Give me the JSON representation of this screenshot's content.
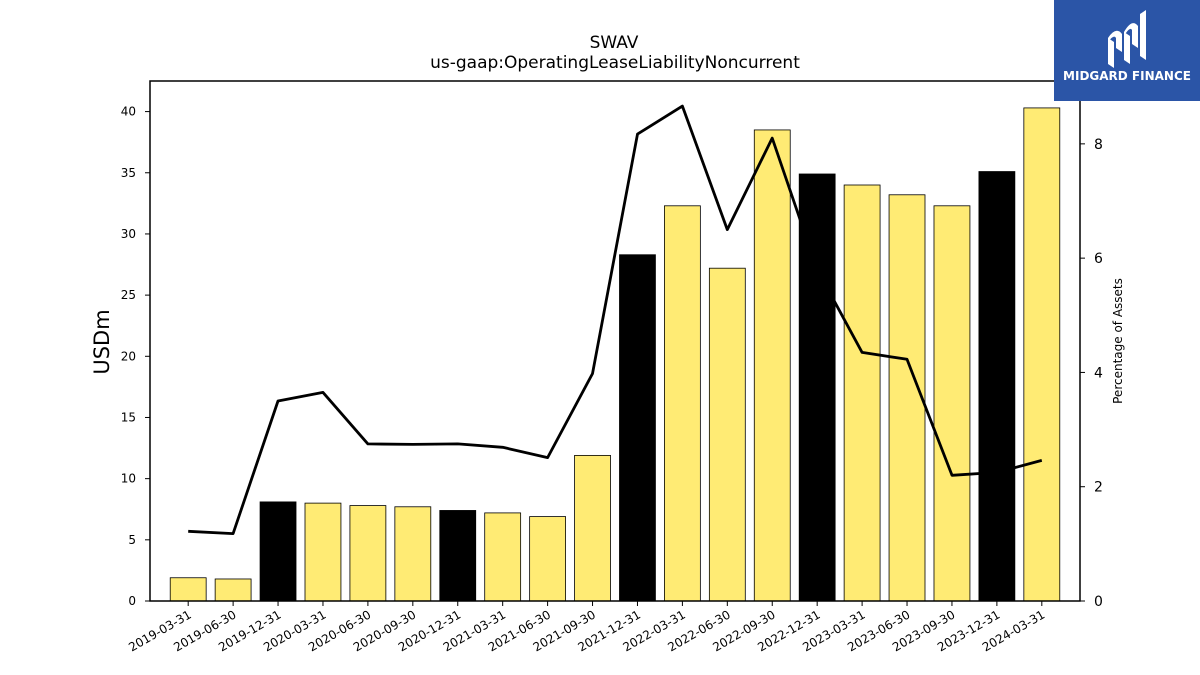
{
  "logo": {
    "text": "MIDGARD FINANCE",
    "icon": "midgard-mark-icon",
    "background": "#2b55a7"
  },
  "chart_data": {
    "type": "bar",
    "title": "SWAV",
    "subtitle": "us-gaap:OperatingLeaseLiabilityNoncurrent",
    "ylabel": "USDm",
    "y2label": "Percentage of Assets",
    "ylim": [
      0,
      42.5
    ],
    "y2lim": [
      0,
      9.1
    ],
    "yticks": [
      0,
      5,
      10,
      15,
      20,
      25,
      30,
      35,
      40
    ],
    "y2ticks": [
      0,
      2,
      4,
      6,
      8
    ],
    "categories": [
      "2019-03-31",
      "2019-06-30",
      "2019-12-31",
      "2020-03-31",
      "2020-06-30",
      "2020-09-30",
      "2020-12-31",
      "2021-03-31",
      "2021-06-30",
      "2021-09-30",
      "2021-12-31",
      "2022-03-31",
      "2022-06-30",
      "2022-09-30",
      "2022-12-31",
      "2023-03-31",
      "2023-06-30",
      "2023-09-30",
      "2023-12-31",
      "2024-03-31"
    ],
    "series": [
      {
        "type": "bar",
        "values": [
          1.9,
          1.8,
          8.1,
          8.0,
          7.8,
          7.7,
          7.4,
          7.2,
          6.9,
          11.9,
          28.3,
          32.3,
          27.2,
          38.5,
          34.9,
          34.0,
          33.2,
          32.3,
          35.1,
          40.3
        ],
        "colors": [
          "#ffeb74",
          "#ffeb74",
          "#000000",
          "#ffeb74",
          "#ffeb74",
          "#ffeb74",
          "#000000",
          "#ffeb74",
          "#ffeb74",
          "#ffeb74",
          "#000000",
          "#ffeb74",
          "#ffeb74",
          "#ffeb74",
          "#000000",
          "#ffeb74",
          "#ffeb74",
          "#ffeb74",
          "#000000",
          "#ffeb74"
        ]
      },
      {
        "type": "line",
        "axis": "right",
        "values": [
          1.22,
          1.18,
          3.5,
          3.65,
          2.75,
          2.74,
          2.75,
          2.69,
          2.51,
          3.98,
          8.17,
          8.66,
          6.5,
          8.1,
          5.8,
          4.35,
          4.23,
          2.2,
          2.25,
          2.46
        ]
      }
    ],
    "legend": "none",
    "grid": false,
    "colors": {
      "bar_primary": "#ffeb74",
      "bar_highlight": "#000000",
      "line": "#000000"
    }
  }
}
